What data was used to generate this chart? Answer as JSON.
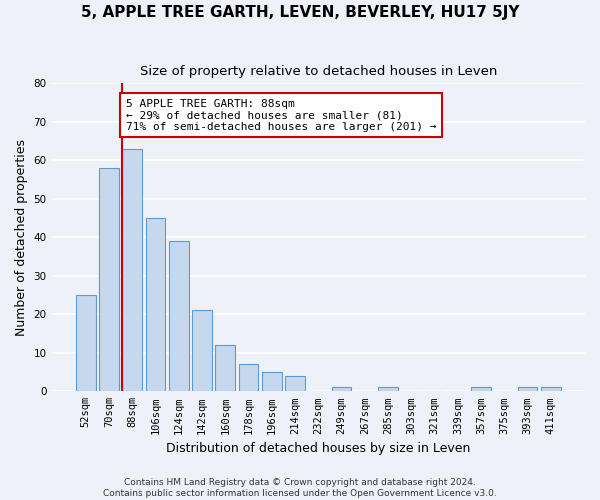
{
  "title": "5, APPLE TREE GARTH, LEVEN, BEVERLEY, HU17 5JY",
  "subtitle": "Size of property relative to detached houses in Leven",
  "xlabel": "Distribution of detached houses by size in Leven",
  "ylabel": "Number of detached properties",
  "bin_labels": [
    "52sqm",
    "70sqm",
    "88sqm",
    "106sqm",
    "124sqm",
    "142sqm",
    "160sqm",
    "178sqm",
    "196sqm",
    "214sqm",
    "232sqm",
    "249sqm",
    "267sqm",
    "285sqm",
    "303sqm",
    "321sqm",
    "339sqm",
    "357sqm",
    "375sqm",
    "393sqm",
    "411sqm"
  ],
  "bar_values": [
    25,
    58,
    63,
    45,
    39,
    21,
    12,
    7,
    5,
    4,
    0,
    1,
    0,
    1,
    0,
    0,
    0,
    1,
    0,
    1,
    1
  ],
  "bar_color": "#c5d8ed",
  "bar_edge_color": "#5b9bd5",
  "reference_line_index": 2,
  "reference_line_color": "#cc0000",
  "annotation_text": "5 APPLE TREE GARTH: 88sqm\n← 29% of detached houses are smaller (81)\n71% of semi-detached houses are larger (201) →",
  "annotation_box_color": "#ffffff",
  "annotation_box_edge_color": "#cc0000",
  "ylim": [
    0,
    80
  ],
  "yticks": [
    0,
    10,
    20,
    30,
    40,
    50,
    60,
    70,
    80
  ],
  "footer_line1": "Contains HM Land Registry data © Crown copyright and database right 2024.",
  "footer_line2": "Contains public sector information licensed under the Open Government Licence v3.0.",
  "bg_color": "#eef2f8",
  "plot_bg_color": "#eef2f8",
  "grid_color": "#ffffff",
  "title_fontsize": 11,
  "subtitle_fontsize": 9.5,
  "axis_label_fontsize": 9,
  "tick_fontsize": 7.5,
  "footer_fontsize": 6.5,
  "bar_width": 0.85
}
